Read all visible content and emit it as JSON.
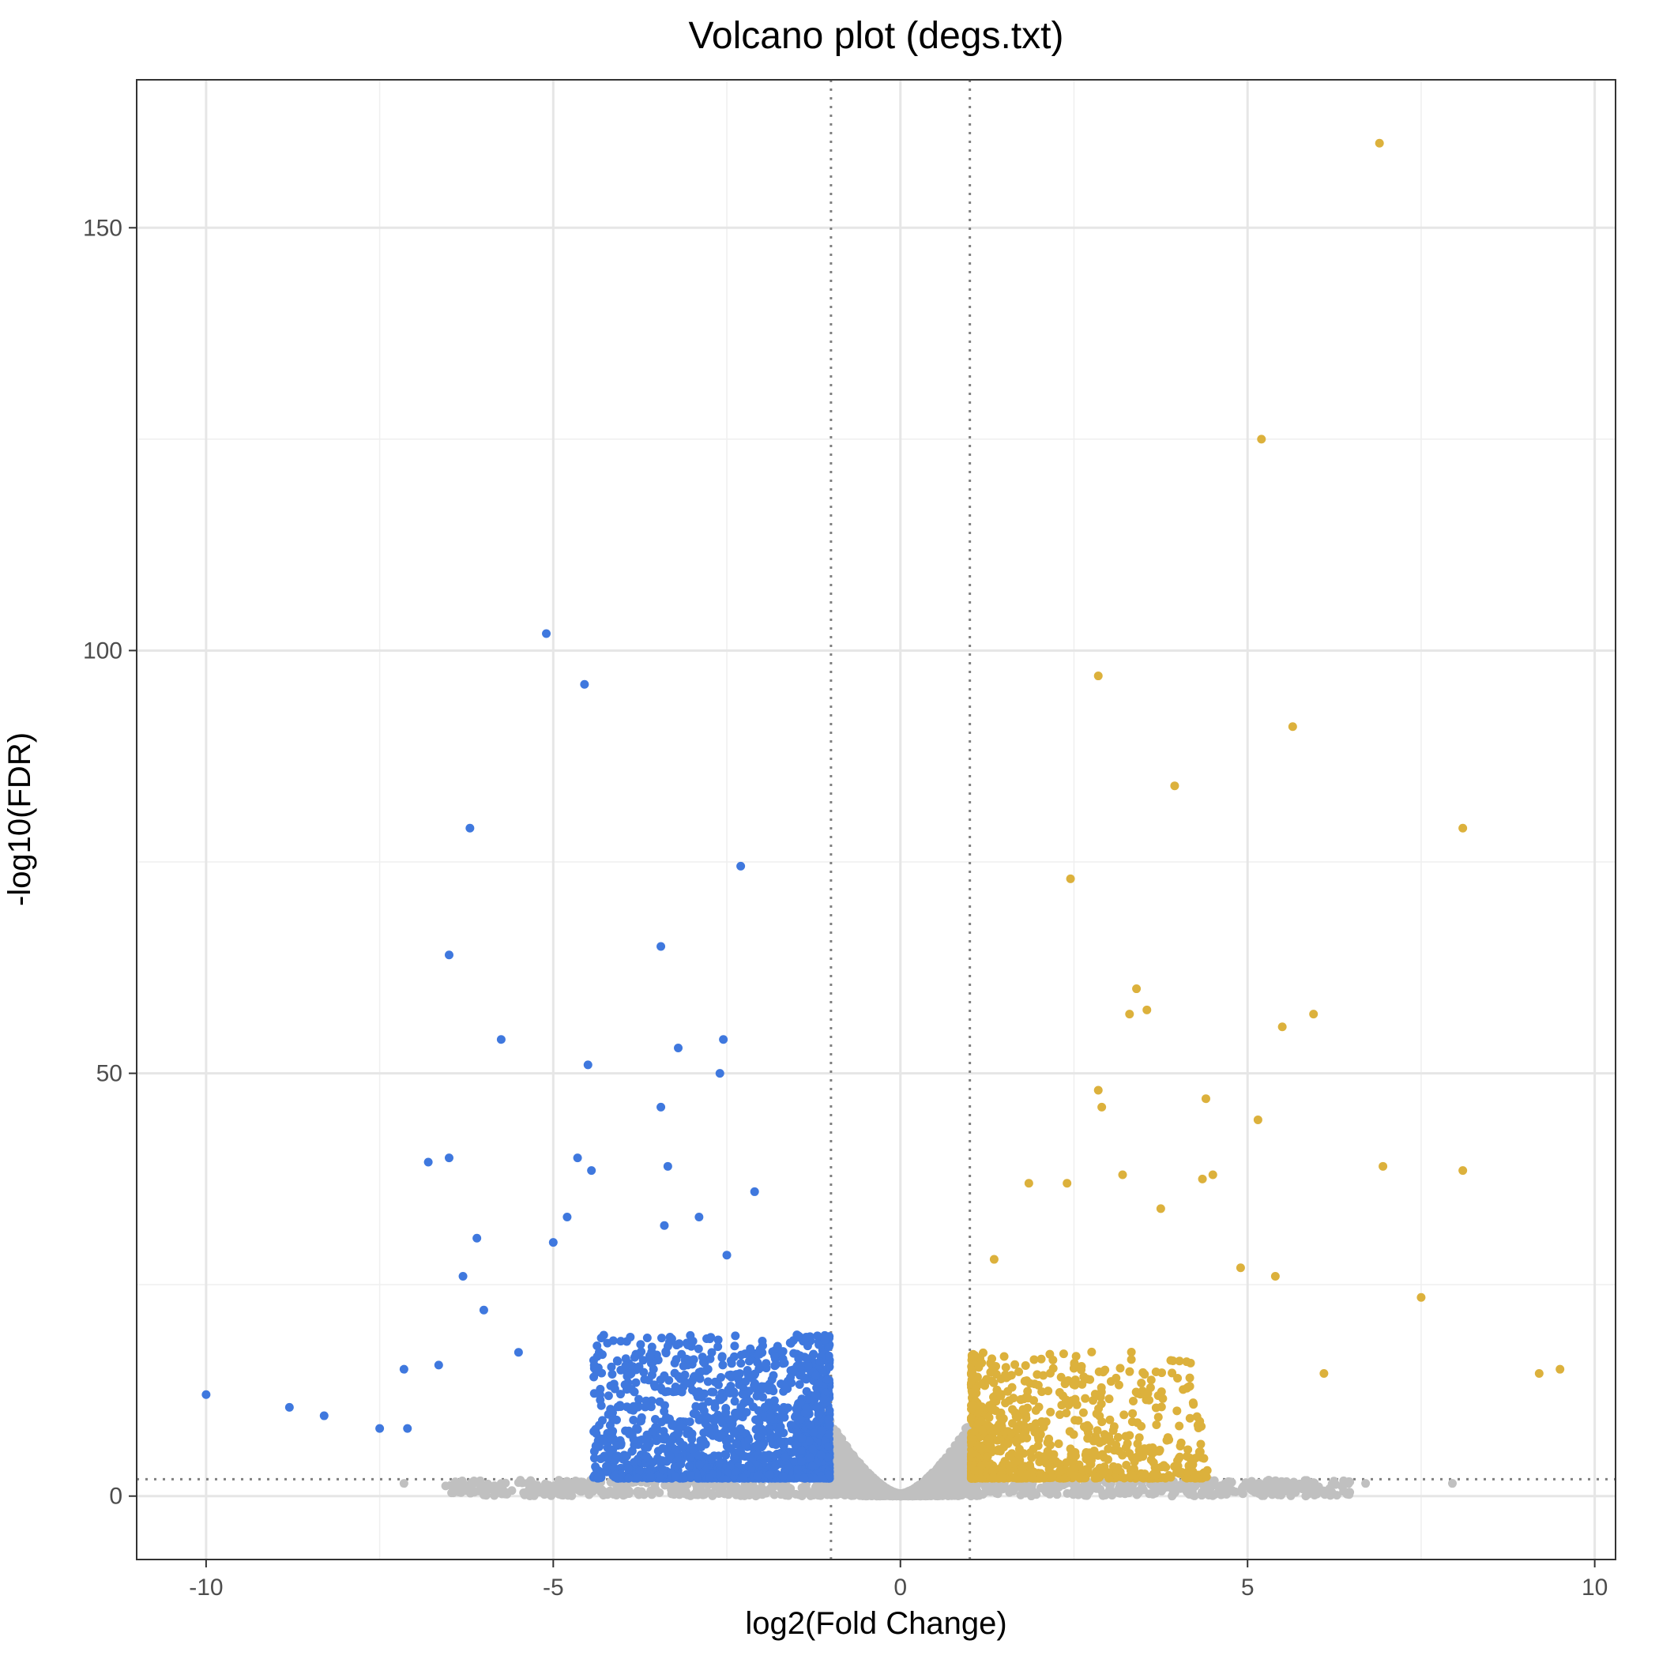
{
  "chart_data": {
    "type": "scatter",
    "title": "Volcano plot (degs.txt)",
    "xlabel": "log2(Fold Change)",
    "ylabel": "-log10(FDR)",
    "xlim": [
      -11,
      10.3
    ],
    "ylim": [
      -7.5,
      167.5
    ],
    "x_ticks": [
      -10,
      -5,
      0,
      5,
      10
    ],
    "x_tick_labels": [
      "-10",
      "-5",
      "0",
      "5",
      "10"
    ],
    "y_ticks": [
      0,
      50,
      100,
      150
    ],
    "y_tick_labels": [
      "0",
      "50",
      "100",
      "150"
    ],
    "grid": true,
    "reference_lines": {
      "fold_change_cutoffs": [
        -1,
        1
      ],
      "fdr_cutoff": 2
    },
    "colors": {
      "down": "#3f78de",
      "up": "#dcb13c",
      "not_significant": "#c0c0c0"
    },
    "series": [
      {
        "name": "down",
        "x": [
          -5.1,
          -4.55,
          -6.2,
          -2.3,
          -6.5,
          -3.45,
          -5.75,
          -2.55,
          -3.2,
          -4.5,
          -2.6,
          -3.45,
          -6.5,
          -6.8,
          -4.65,
          -4.45,
          -3.35,
          -2.1,
          -4.8,
          -3.4,
          -2.9,
          -2.5,
          -6.1,
          -5,
          -6.3,
          -6,
          -7.15,
          -6.65,
          -5.5,
          -10,
          -8.8,
          -8.3,
          -7.1,
          -7.5
        ],
        "y": [
          102,
          96,
          79,
          74.5,
          64,
          65,
          54,
          54,
          53,
          51,
          50,
          46,
          40,
          39.5,
          40,
          38.5,
          39,
          36,
          33,
          32,
          33,
          28.5,
          30.5,
          30,
          26,
          22,
          15,
          15.5,
          17,
          12,
          10.5,
          9.5,
          8,
          8
        ]
      },
      {
        "name": "up",
        "x": [
          6.9,
          5.2,
          2.85,
          5.65,
          3.95,
          8.1,
          2.45,
          3.4,
          3.55,
          5.95,
          3.3,
          5.5,
          2.85,
          4.4,
          2.9,
          5.15,
          6.95,
          8.1,
          3.2,
          4.5,
          4.35,
          3.75,
          7.5,
          9.5,
          9.2,
          6.1,
          5.4,
          4.9,
          2.4,
          1.85,
          1.35
        ],
        "y": [
          160,
          125,
          97,
          91,
          84,
          79,
          73,
          60,
          57.5,
          57,
          57,
          55.5,
          48,
          47,
          46,
          44.5,
          39,
          38.5,
          38,
          38,
          37.5,
          34,
          23.5,
          15,
          14.5,
          14.5,
          26,
          27,
          37,
          37,
          28
        ]
      },
      {
        "name": "not_significant",
        "x": [
          -7.15,
          -6.55,
          -6.3,
          -5.5,
          -5.3,
          -4.9,
          5.6,
          5.95,
          7.95,
          6.7,
          5.05
        ],
        "y": [
          1.5,
          1.2,
          1.4,
          1.6,
          1.5,
          1.3,
          1.4,
          1.6,
          1.5,
          1.5,
          1.5
        ]
      }
    ]
  }
}
